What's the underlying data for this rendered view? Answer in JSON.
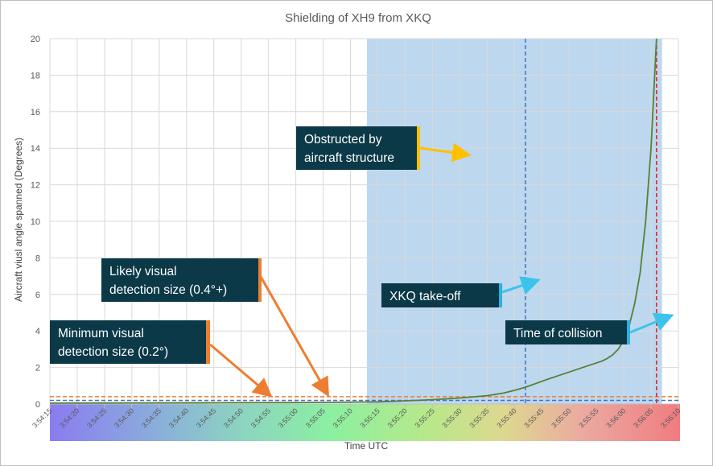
{
  "chart_data": {
    "type": "line",
    "title": "Shielding of XH9 from XKQ",
    "xlabel": "Time UTC",
    "ylabel": "Aircraft viusl angle spanned (Degrees)",
    "ylim": [
      0,
      20
    ],
    "yticks": [
      "0",
      "2",
      "4",
      "6",
      "8",
      "10",
      "12",
      "14",
      "16",
      "18",
      "20"
    ],
    "xlim_seconds": [
      0,
      115
    ],
    "xticks": [
      "3:54:15",
      "3:54:20",
      "3:54:25",
      "3:54:30",
      "3:54:35",
      "3:54:40",
      "3:54:45",
      "3:54:50",
      "3:54:55",
      "3:55:00",
      "3:55:05",
      "3:55:10",
      "3:55:15",
      "3:55:20",
      "3:55:25",
      "3:55:30",
      "3:55:35",
      "3:55:40",
      "3:55:45",
      "3:55:50",
      "3:55:55",
      "3:56:00",
      "3:56:05",
      "3:56:10"
    ],
    "grid": true,
    "series": [
      {
        "color": "#548235",
        "x": [
          "3:54:15",
          "3:54:30",
          "3:54:45",
          "3:55:00",
          "3:55:10",
          "3:55:15",
          "3:55:20",
          "3:55:25",
          "3:55:30",
          "3:55:35",
          "3:55:38",
          "3:55:40",
          "3:55:42",
          "3:55:44",
          "3:55:46",
          "3:55:48",
          "3:55:50",
          "3:55:52",
          "3:55:54",
          "3:55:56",
          "3:55:57",
          "3:55:58",
          "3:55:59",
          "3:56:00",
          "3:56:01",
          "3:56:02",
          "3:56:03",
          "3:56:04",
          "3:56:05",
          "3:56:05.5",
          "3:56:06"
        ],
        "y": [
          0.05,
          0.06,
          0.07,
          0.08,
          0.1,
          0.12,
          0.17,
          0.24,
          0.33,
          0.46,
          0.6,
          0.75,
          0.92,
          1.13,
          1.35,
          1.55,
          1.75,
          1.95,
          2.15,
          2.35,
          2.5,
          2.7,
          3.0,
          3.5,
          4.3,
          5.5,
          7.2,
          10.0,
          14.0,
          17.0,
          20.0
        ]
      }
    ],
    "threshold_lines": [
      {
        "y": 0.4,
        "color": "#ed7d31"
      },
      {
        "y": 0.2,
        "color": "#4472c4"
      }
    ],
    "shaded_region": {
      "x_start": "3:55:13",
      "x_end": "3:56:07",
      "color": "#bdd7ee"
    },
    "vertical_markers": [
      {
        "x": "3:55:42",
        "color": "#4472c4"
      },
      {
        "x": "3:56:06",
        "color": "#e02020"
      }
    ],
    "annotations": [
      {
        "text": [
          "Obstructed by",
          "aircraft structure"
        ],
        "accent": "#ffc000",
        "arrow_color": "#ffc000"
      },
      {
        "text": [
          "XKQ take-off"
        ],
        "accent": "#2eb0e0",
        "arrow_color": "#3cc3ed"
      },
      {
        "text": [
          "Time of collision"
        ],
        "accent": "#2eb0e0",
        "arrow_color": "#3cc3ed"
      },
      {
        "text": [
          "Likely visual",
          "detection size (0.4°+)"
        ],
        "accent": "#ed7d31",
        "arrow_color": "#ed7d31"
      },
      {
        "text": [
          "Minimum visual",
          "detection size (0.2°)"
        ],
        "accent": "#ed7d31",
        "arrow_color": "#ed7d31"
      }
    ],
    "callout_color": "#0b3948"
  }
}
